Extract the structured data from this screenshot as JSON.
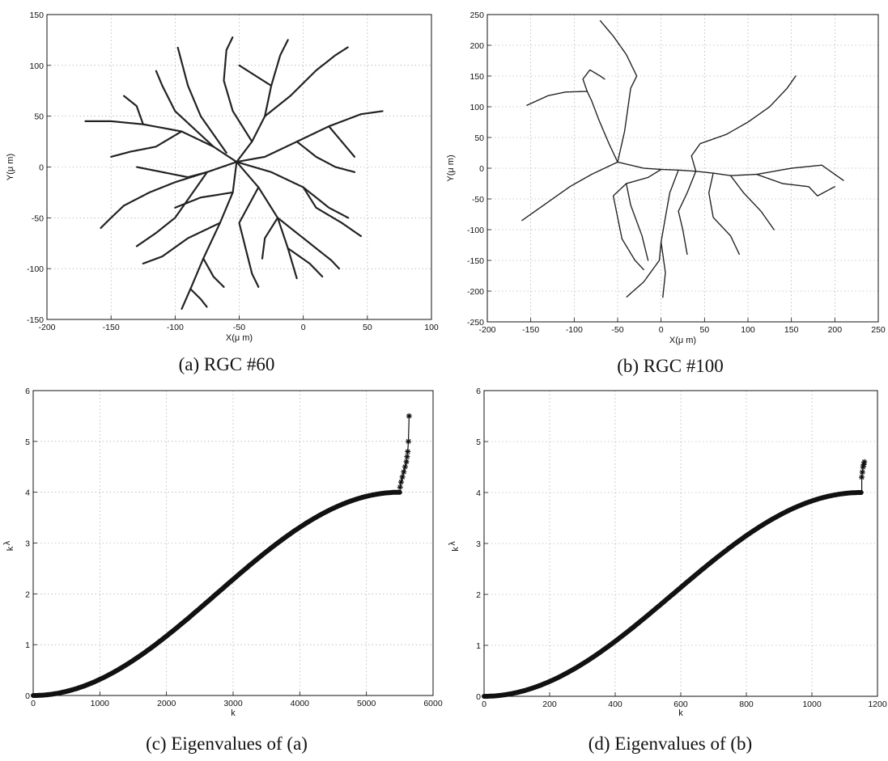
{
  "chart_data": [
    {
      "id": "a",
      "type": "scatter",
      "caption": "(a)  RGC #60",
      "xlabel": "X(μ m)",
      "ylabel": "Y(μ m)",
      "xlim": [
        -200,
        100
      ],
      "ylim": [
        -150,
        150
      ],
      "xticks": [
        -200,
        -150,
        -100,
        -50,
        0,
        50,
        100
      ],
      "yticks": [
        -150,
        -100,
        -50,
        0,
        50,
        100,
        150
      ],
      "grid": true,
      "branches": [
        [
          [
            -52,
            5
          ],
          [
            -40,
            25
          ],
          [
            -30,
            50
          ],
          [
            -25,
            80
          ],
          [
            -18,
            110
          ],
          [
            -12,
            125
          ]
        ],
        [
          [
            -52,
            5
          ],
          [
            -70,
            20
          ],
          [
            -95,
            35
          ],
          [
            -125,
            42
          ],
          [
            -150,
            45
          ],
          [
            -170,
            45
          ]
        ],
        [
          [
            -52,
            5
          ],
          [
            -75,
            -5
          ],
          [
            -100,
            -15
          ],
          [
            -120,
            -25
          ],
          [
            -140,
            -38
          ]
        ],
        [
          [
            -52,
            5
          ],
          [
            -55,
            -25
          ],
          [
            -65,
            -55
          ],
          [
            -78,
            -90
          ],
          [
            -88,
            -120
          ],
          [
            -95,
            -140
          ]
        ],
        [
          [
            -52,
            5
          ],
          [
            -35,
            -20
          ],
          [
            -20,
            -50
          ],
          [
            -12,
            -80
          ],
          [
            -5,
            -110
          ]
        ],
        [
          [
            -52,
            5
          ],
          [
            -30,
            10
          ],
          [
            -5,
            25
          ],
          [
            20,
            40
          ],
          [
            45,
            52
          ],
          [
            62,
            55
          ]
        ],
        [
          [
            -52,
            5
          ],
          [
            -25,
            -5
          ],
          [
            0,
            -20
          ],
          [
            20,
            -40
          ],
          [
            35,
            -50
          ]
        ],
        [
          [
            -40,
            25
          ],
          [
            -55,
            55
          ],
          [
            -62,
            85
          ],
          [
            -60,
            115
          ],
          [
            -55,
            128
          ]
        ],
        [
          [
            -60,
            14
          ],
          [
            -80,
            50
          ],
          [
            -90,
            80
          ],
          [
            -98,
            118
          ]
        ],
        [
          [
            -30,
            50
          ],
          [
            -10,
            70
          ],
          [
            10,
            95
          ],
          [
            25,
            110
          ],
          [
            35,
            118
          ]
        ],
        [
          [
            -70,
            20
          ],
          [
            -100,
            55
          ],
          [
            -110,
            80
          ],
          [
            -115,
            95
          ]
        ],
        [
          [
            -95,
            35
          ],
          [
            -115,
            20
          ],
          [
            -135,
            15
          ],
          [
            -150,
            10
          ]
        ],
        [
          [
            -125,
            42
          ],
          [
            -130,
            60
          ],
          [
            -140,
            70
          ]
        ],
        [
          [
            -75,
            -5
          ],
          [
            -100,
            -50
          ],
          [
            -115,
            -65
          ],
          [
            -130,
            -78
          ]
        ],
        [
          [
            -65,
            -55
          ],
          [
            -90,
            -70
          ],
          [
            -110,
            -88
          ],
          [
            -125,
            -95
          ]
        ],
        [
          [
            -78,
            -90
          ],
          [
            -70,
            -108
          ],
          [
            -62,
            -118
          ]
        ],
        [
          [
            -35,
            -20
          ],
          [
            -50,
            -55
          ],
          [
            -45,
            -80
          ],
          [
            -40,
            -105
          ],
          [
            -35,
            -118
          ]
        ],
        [
          [
            -20,
            -50
          ],
          [
            -5,
            -65
          ],
          [
            10,
            -80
          ],
          [
            22,
            -92
          ],
          [
            28,
            -100
          ]
        ],
        [
          [
            0,
            -20
          ],
          [
            10,
            -40
          ],
          [
            30,
            -55
          ],
          [
            45,
            -68
          ]
        ],
        [
          [
            -5,
            25
          ],
          [
            10,
            10
          ],
          [
            25,
            0
          ],
          [
            40,
            -5
          ]
        ],
        [
          [
            -20,
            -50
          ],
          [
            -30,
            -70
          ],
          [
            -32,
            -90
          ]
        ],
        [
          [
            -75,
            -5
          ],
          [
            -90,
            -10
          ],
          [
            -110,
            -5
          ],
          [
            -130,
            0
          ]
        ],
        [
          [
            20,
            40
          ],
          [
            30,
            25
          ],
          [
            40,
            10
          ]
        ],
        [
          [
            -25,
            80
          ],
          [
            -40,
            92
          ],
          [
            -50,
            100
          ]
        ],
        [
          [
            -12,
            -80
          ],
          [
            5,
            -95
          ],
          [
            15,
            -108
          ]
        ],
        [
          [
            -55,
            -25
          ],
          [
            -80,
            -30
          ],
          [
            -100,
            -40
          ]
        ],
        [
          [
            -140,
            -38
          ],
          [
            -150,
            -50
          ],
          [
            -158,
            -60
          ]
        ],
        [
          [
            -88,
            -120
          ],
          [
            -80,
            -130
          ],
          [
            -75,
            -138
          ]
        ]
      ]
    },
    {
      "id": "b",
      "type": "scatter",
      "caption": "(b)  RGC #100",
      "xlabel": "X(μ m)",
      "ylabel": "Y(μ m)",
      "xlim": [
        -200,
        250
      ],
      "ylim": [
        -250,
        250
      ],
      "xticks": [
        -200,
        -150,
        -100,
        -50,
        0,
        50,
        100,
        150,
        200,
        250
      ],
      "yticks": [
        -250,
        -200,
        -150,
        -100,
        -50,
        0,
        50,
        100,
        150,
        200,
        250
      ],
      "grid": true,
      "branches": [
        [
          [
            40,
            -5
          ],
          [
            20,
            -3
          ],
          [
            0,
            -2
          ],
          [
            -20,
            0
          ],
          [
            -50,
            10
          ]
        ],
        [
          [
            -50,
            10
          ],
          [
            -80,
            -10
          ],
          [
            -105,
            -30
          ],
          [
            -130,
            -55
          ],
          [
            -160,
            -85
          ]
        ],
        [
          [
            -50,
            10
          ],
          [
            -60,
            40
          ],
          [
            -72,
            80
          ],
          [
            -80,
            110
          ],
          [
            -85,
            125
          ]
        ],
        [
          [
            -85,
            125
          ],
          [
            -110,
            124
          ],
          [
            -130,
            118
          ],
          [
            -155,
            102
          ]
        ],
        [
          [
            -85,
            125
          ],
          [
            -90,
            145
          ],
          [
            -82,
            160
          ],
          [
            -70,
            150
          ],
          [
            -65,
            145
          ]
        ],
        [
          [
            -50,
            10
          ],
          [
            -42,
            60
          ],
          [
            -38,
            100
          ],
          [
            -35,
            130
          ],
          [
            -28,
            150
          ],
          [
            -40,
            185
          ],
          [
            -55,
            215
          ],
          [
            -70,
            240
          ]
        ],
        [
          [
            40,
            -5
          ],
          [
            35,
            20
          ],
          [
            45,
            40
          ],
          [
            75,
            55
          ],
          [
            100,
            75
          ],
          [
            125,
            100
          ],
          [
            145,
            130
          ],
          [
            155,
            150
          ]
        ],
        [
          [
            40,
            -5
          ],
          [
            60,
            -8
          ],
          [
            80,
            -12
          ],
          [
            110,
            -10
          ],
          [
            150,
            0
          ],
          [
            185,
            5
          ],
          [
            210,
            -20
          ]
        ],
        [
          [
            110,
            -10
          ],
          [
            140,
            -25
          ],
          [
            170,
            -30
          ],
          [
            180,
            -45
          ],
          [
            200,
            -30
          ]
        ],
        [
          [
            0,
            -2
          ],
          [
            -15,
            -15
          ],
          [
            -40,
            -25
          ],
          [
            -55,
            -45
          ],
          [
            -50,
            -80
          ],
          [
            -45,
            -115
          ],
          [
            -30,
            -150
          ],
          [
            -20,
            -165
          ]
        ],
        [
          [
            -40,
            -25
          ],
          [
            -35,
            -60
          ],
          [
            -22,
            -110
          ],
          [
            -15,
            -150
          ]
        ],
        [
          [
            20,
            -3
          ],
          [
            10,
            -40
          ],
          [
            5,
            -80
          ],
          [
            0,
            -120
          ],
          [
            -2,
            -150
          ],
          [
            -20,
            -185
          ],
          [
            -40,
            -210
          ]
        ],
        [
          [
            0,
            -120
          ],
          [
            5,
            -170
          ],
          [
            2,
            -210
          ]
        ],
        [
          [
            40,
            -5
          ],
          [
            30,
            -40
          ],
          [
            20,
            -70
          ],
          [
            25,
            -100
          ],
          [
            30,
            -140
          ]
        ],
        [
          [
            60,
            -8
          ],
          [
            55,
            -40
          ],
          [
            60,
            -80
          ],
          [
            80,
            -110
          ],
          [
            90,
            -140
          ]
        ],
        [
          [
            80,
            -12
          ],
          [
            95,
            -40
          ],
          [
            115,
            -70
          ],
          [
            130,
            -100
          ]
        ]
      ]
    },
    {
      "id": "c",
      "type": "line",
      "caption": "(c)  Eigenvalues of (a)",
      "xlabel": "k",
      "ylabel": "λ",
      "ylabel_sub": "k",
      "xlim": [
        0,
        6000
      ],
      "ylim": [
        0,
        6
      ],
      "xticks": [
        0,
        1000,
        2000,
        3000,
        4000,
        5000,
        6000
      ],
      "yticks": [
        0,
        1,
        2,
        3,
        4,
        5,
        6
      ],
      "grid": true,
      "n": 5500,
      "curve_max": 4,
      "outliers": {
        "k": [
          5505,
          5520,
          5540,
          5560,
          5580,
          5600,
          5610,
          5620,
          5630,
          5640
        ],
        "values": [
          4.1,
          4.2,
          4.3,
          4.4,
          4.5,
          4.6,
          4.7,
          4.8,
          5.0,
          5.5
        ]
      }
    },
    {
      "id": "d",
      "type": "line",
      "caption": "(d)  Eigenvalues of (b)",
      "xlabel": "k",
      "ylabel": "λ",
      "ylabel_sub": "k",
      "xlim": [
        0,
        1200
      ],
      "ylim": [
        0,
        6
      ],
      "xticks": [
        0,
        200,
        400,
        600,
        800,
        1000,
        1200
      ],
      "yticks": [
        0,
        1,
        2,
        3,
        4,
        5,
        6
      ],
      "grid": true,
      "n": 1150,
      "curve_max": 4,
      "outliers": {
        "k": [
          1152,
          1154,
          1156,
          1158,
          1160
        ],
        "values": [
          4.3,
          4.4,
          4.5,
          4.55,
          4.6
        ]
      }
    }
  ]
}
